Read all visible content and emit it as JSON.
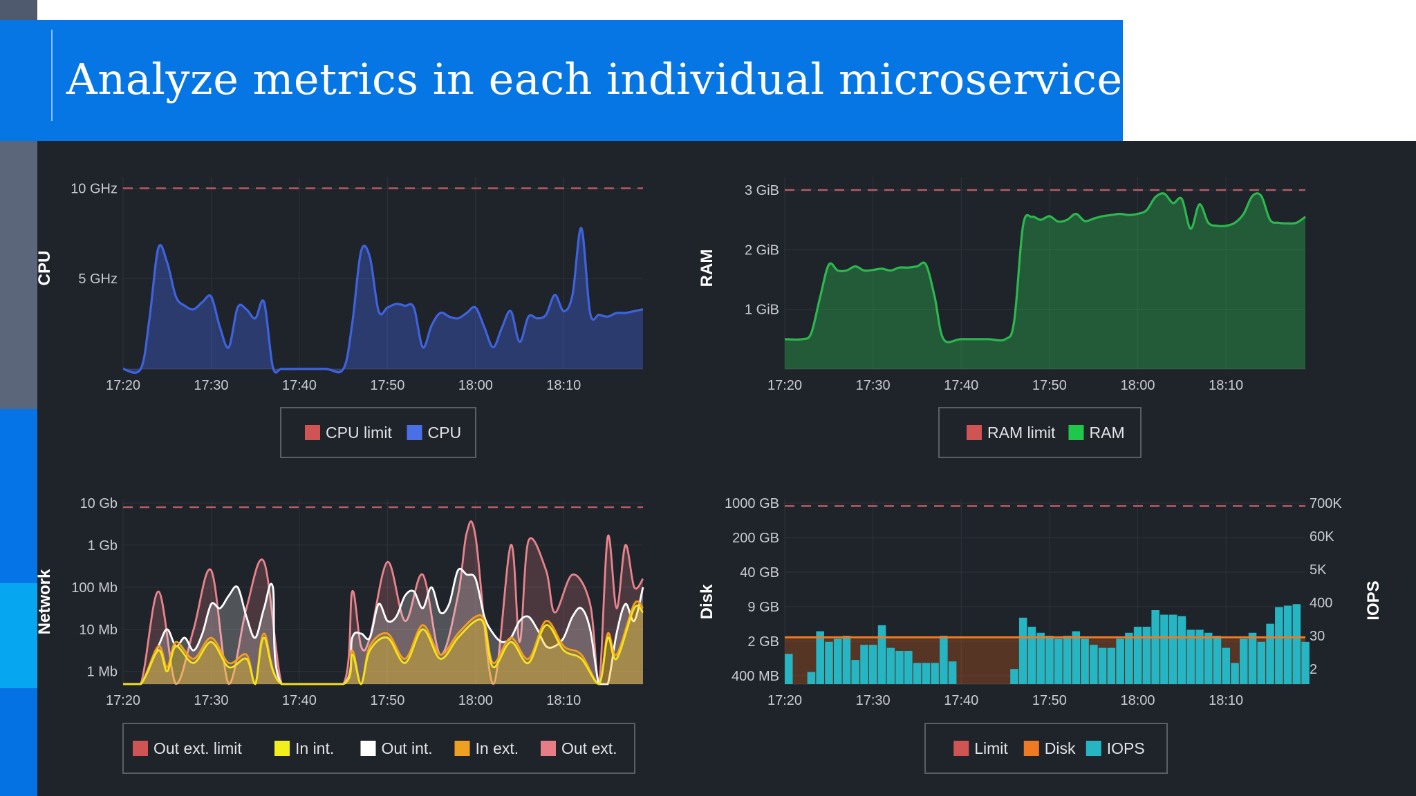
{
  "slide": {
    "title": "Analyze metrics in each individual microservice"
  },
  "colors": {
    "title_bar": "#0576e4",
    "dashboard_bg": "#1f232a",
    "limit_line": "#b85b62"
  },
  "chart_data": [
    {
      "id": "cpu",
      "type": "area",
      "ylabel": "CPU",
      "y_ticks": [
        "10 GHz",
        "5 GHz"
      ],
      "y_tick_values": [
        10,
        5
      ],
      "ylim": [
        0,
        10.4
      ],
      "x_ticks": [
        "17:20",
        "17:30",
        "17:40",
        "17:50",
        "18:00",
        "18:10"
      ],
      "xlim": [
        "17:20",
        "18:19"
      ],
      "limit": 10,
      "series": [
        {
          "name": "CPU",
          "color": "#3f63dd",
          "x": [
            "17:20",
            "17:22",
            "17:23",
            "17:24",
            "17:25",
            "17:26",
            "17:27",
            "17:28",
            "17:29",
            "17:30",
            "17:31",
            "17:32",
            "17:33",
            "17:34",
            "17:35",
            "17:36",
            "17:37",
            "17:38",
            "17:40",
            "17:43",
            "17:45",
            "17:46",
            "17:47",
            "17:48",
            "17:49",
            "17:50",
            "17:51",
            "17:52",
            "17:53",
            "17:54",
            "17:55",
            "17:56",
            "17:57",
            "17:58",
            "17:59",
            "18:00",
            "18:01",
            "18:02",
            "18:03",
            "18:04",
            "18:05",
            "18:06",
            "18:07",
            "18:08",
            "18:09",
            "18:10",
            "18:11",
            "18:12",
            "18:13",
            "18:14",
            "18:15",
            "18:16",
            "18:17",
            "18:18",
            "18:19"
          ],
          "values": [
            0,
            0,
            2.8,
            6.7,
            5.9,
            4.0,
            3.5,
            3.3,
            3.7,
            4.0,
            2.3,
            1.2,
            3.4,
            3.3,
            2.8,
            3.7,
            0.1,
            0,
            0,
            0,
            0,
            2.5,
            6.5,
            6.2,
            3.2,
            3.4,
            3.6,
            3.5,
            3.4,
            1.2,
            2.4,
            3.1,
            2.9,
            2.8,
            3.1,
            3.4,
            2.3,
            1.2,
            2.3,
            3.2,
            1.5,
            2.9,
            2.8,
            3.0,
            4.1,
            3.2,
            4.1,
            7.8,
            3.1,
            3.0,
            2.9,
            3.1,
            3.1,
            3.2,
            3.3
          ]
        }
      ],
      "legend": [
        "CPU limit",
        "CPU"
      ],
      "legend_colors": [
        "#d05454",
        "#4a70e8"
      ]
    },
    {
      "id": "ram",
      "type": "area",
      "ylabel": "RAM",
      "y_ticks": [
        "3 GiB",
        "2 GiB",
        "1 GiB"
      ],
      "y_tick_values": [
        3,
        2,
        1
      ],
      "ylim": [
        0,
        3.15
      ],
      "x_ticks": [
        "17:20",
        "17:30",
        "17:40",
        "17:50",
        "18:00",
        "18:10"
      ],
      "xlim": [
        "17:20",
        "18:19"
      ],
      "limit": 3,
      "series": [
        {
          "name": "RAM",
          "color": "#2bb84e",
          "x": [
            "17:20",
            "17:22",
            "17:23",
            "17:24",
            "17:25",
            "17:26",
            "17:27",
            "17:28",
            "17:29",
            "17:30",
            "17:31",
            "17:32",
            "17:33",
            "17:34",
            "17:35",
            "17:36",
            "17:37",
            "17:38",
            "17:40",
            "17:43",
            "17:45",
            "17:46",
            "17:47",
            "17:48",
            "17:49",
            "17:50",
            "17:51",
            "17:52",
            "17:53",
            "17:54",
            "17:55",
            "17:56",
            "17:57",
            "17:58",
            "17:59",
            "18:00",
            "18:01",
            "18:02",
            "18:03",
            "18:04",
            "18:05",
            "18:06",
            "18:07",
            "18:08",
            "18:09",
            "18:10",
            "18:11",
            "18:12",
            "18:13",
            "18:14",
            "18:15",
            "18:16",
            "18:17",
            "18:18",
            "18:19"
          ],
          "values": [
            0.5,
            0.5,
            0.6,
            1.2,
            1.75,
            1.65,
            1.65,
            1.72,
            1.65,
            1.66,
            1.68,
            1.65,
            1.7,
            1.7,
            1.72,
            1.75,
            1.2,
            0.5,
            0.5,
            0.5,
            0.5,
            0.8,
            2.4,
            2.55,
            2.5,
            2.56,
            2.47,
            2.5,
            2.6,
            2.48,
            2.52,
            2.56,
            2.58,
            2.6,
            2.58,
            2.6,
            2.66,
            2.88,
            2.94,
            2.78,
            2.85,
            2.35,
            2.76,
            2.45,
            2.4,
            2.4,
            2.45,
            2.6,
            2.9,
            2.9,
            2.5,
            2.45,
            2.44,
            2.45,
            2.55
          ]
        }
      ],
      "legend": [
        "RAM limit",
        "RAM"
      ],
      "legend_colors": [
        "#d05454",
        "#1ec94a"
      ]
    },
    {
      "id": "network",
      "type": "area",
      "ylabel": "Network",
      "y_scale": "log",
      "y_ticks": [
        "10 Gb",
        "1 Gb",
        "100 Mb",
        "10 Mb",
        "1 Mb"
      ],
      "y_tick_values": [
        10000,
        1000,
        100,
        10,
        1
      ],
      "ylim_log10": [
        -0.3,
        4
      ],
      "x_ticks": [
        "17:20",
        "17:30",
        "17:40",
        "17:50",
        "18:00",
        "18:10"
      ],
      "xlim": [
        "17:20",
        "18:19"
      ],
      "limit": 10000,
      "series": [
        {
          "name": "Out ext.",
          "color": "#e8848d",
          "x": [
            "17:20",
            "17:22",
            "17:24",
            "17:26",
            "17:28",
            "17:30",
            "17:32",
            "17:34",
            "17:36",
            "17:38",
            "17:40",
            "17:45",
            "17:46",
            "17:47",
            "17:48",
            "17:50",
            "17:52",
            "17:54",
            "17:56",
            "17:58",
            "17:59",
            "18:00",
            "18:02",
            "18:04",
            "18:05",
            "18:06",
            "18:08",
            "18:09",
            "18:11",
            "18:13",
            "18:14",
            "18:15",
            "18:16",
            "18:17",
            "18:18",
            "18:19"
          ],
          "values_log10": [
            -0.3,
            -0.3,
            1.9,
            -0.3,
            1.0,
            2.4,
            -0.3,
            1.5,
            2.6,
            -0.3,
            -0.3,
            -0.3,
            1.9,
            0.6,
            0.8,
            2.6,
            1.2,
            2.3,
            0.4,
            1.8,
            3.3,
            3.2,
            -0.3,
            3.0,
            0.7,
            3.1,
            2.4,
            1.4,
            2.3,
            1.6,
            -0.3,
            3.2,
            1.5,
            3.0,
            2.0,
            2.2
          ]
        },
        {
          "name": "Out int.",
          "color": "#ffffff",
          "x": [
            "17:20",
            "17:22",
            "17:24",
            "17:25",
            "17:26",
            "17:27",
            "17:28",
            "17:29",
            "17:30",
            "17:31",
            "17:32",
            "17:33",
            "17:34",
            "17:35",
            "17:36",
            "17:37",
            "17:38",
            "17:45",
            "17:46",
            "17:47",
            "17:48",
            "17:49",
            "17:50",
            "17:51",
            "17:52",
            "17:53",
            "17:54",
            "17:55",
            "17:56",
            "17:57",
            "17:58",
            "17:59",
            "18:00",
            "18:01",
            "18:02",
            "18:03",
            "18:04",
            "18:05",
            "18:06",
            "18:07",
            "18:08",
            "18:09",
            "18:10",
            "18:11",
            "18:12",
            "18:13",
            "18:14",
            "18:15",
            "18:16",
            "18:17",
            "18:18",
            "18:19"
          ],
          "values_log10": [
            -0.3,
            -0.3,
            0.6,
            1.0,
            0.6,
            0.8,
            0.5,
            0.9,
            1.6,
            1.5,
            1.8,
            2.0,
            1.3,
            0.8,
            1.5,
            2.0,
            -0.3,
            -0.3,
            0.8,
            0.9,
            0.8,
            1.6,
            1.2,
            1.3,
            1.8,
            1.9,
            1.5,
            2.0,
            1.4,
            1.6,
            2.4,
            2.3,
            2.2,
            1.3,
            0.9,
            0.7,
            0.8,
            1.2,
            1.3,
            1.0,
            0.6,
            0.6,
            0.8,
            1.3,
            1.5,
            1.0,
            -0.3,
            -0.3,
            0.9,
            1.6,
            1.2,
            2.0
          ]
        },
        {
          "name": "In ext.",
          "color": "#f0a020",
          "x": [
            "17:20",
            "17:22",
            "17:24",
            "17:25",
            "17:26",
            "17:28",
            "17:30",
            "17:32",
            "17:34",
            "17:35",
            "17:36",
            "17:38",
            "17:45",
            "17:46",
            "17:47",
            "17:48",
            "17:50",
            "17:52",
            "17:54",
            "17:56",
            "17:58",
            "18:00",
            "18:01",
            "18:02",
            "18:04",
            "18:06",
            "18:08",
            "18:10",
            "18:12",
            "18:14",
            "18:15",
            "18:16",
            "18:18",
            "18:19"
          ],
          "values_log10": [
            -0.3,
            -0.3,
            0.6,
            0.1,
            0.7,
            0.3,
            0.8,
            0.2,
            0.4,
            -0.3,
            0.9,
            -0.3,
            -0.3,
            0.5,
            -0.3,
            0.6,
            0.9,
            0.3,
            1.1,
            0.4,
            0.9,
            1.3,
            1.2,
            0.2,
            0.8,
            0.3,
            1.2,
            0.6,
            0.4,
            -0.3,
            0.9,
            0.4,
            1.6,
            1.5
          ]
        },
        {
          "name": "In int.",
          "color": "#f2e51b",
          "x": [
            "17:20",
            "17:22",
            "17:24",
            "17:25",
            "17:26",
            "17:28",
            "17:30",
            "17:32",
            "17:34",
            "17:35",
            "17:36",
            "17:38",
            "17:45",
            "17:46",
            "17:47",
            "17:48",
            "17:50",
            "17:52",
            "17:54",
            "17:56",
            "17:58",
            "18:00",
            "18:01",
            "18:02",
            "18:04",
            "18:06",
            "18:08",
            "18:10",
            "18:12",
            "18:14",
            "18:15",
            "18:16",
            "18:18",
            "18:19"
          ],
          "values_log10": [
            -0.3,
            -0.3,
            0.5,
            0.0,
            0.6,
            0.2,
            0.7,
            0.1,
            0.3,
            -0.3,
            0.8,
            -0.3,
            -0.3,
            0.4,
            -0.3,
            0.5,
            0.8,
            0.2,
            1.0,
            0.3,
            0.8,
            1.2,
            1.1,
            0.1,
            0.7,
            0.2,
            1.1,
            0.5,
            0.3,
            -0.3,
            0.8,
            0.3,
            1.5,
            1.4
          ]
        }
      ],
      "legend": [
        "Out ext. limit",
        "In int.",
        "Out int.",
        "In ext.",
        "Out ext."
      ],
      "legend_colors": [
        "#d05454",
        "#f2ef1b",
        "#ffffff",
        "#f0a020",
        "#e87d87"
      ]
    },
    {
      "id": "disk",
      "type": "bar",
      "ylabel": "Disk",
      "y2label": "IOPS",
      "y_ticks": [
        "1000 GB",
        "200 GB",
        "40 GB",
        "9 GB",
        "2 GB",
        "400 MB"
      ],
      "y2_ticks": [
        "700K",
        "60K",
        "5K",
        "400",
        "30",
        "2"
      ],
      "x_ticks": [
        "17:20",
        "17:30",
        "17:40",
        "17:50",
        "18:00",
        "18:10"
      ],
      "xlim": [
        "17:20",
        "18:19"
      ],
      "limit_level": 5.9,
      "disk_level": 1.55,
      "bar_scale_max": 6,
      "series": [
        {
          "name": "IOPS",
          "color": "#26b5c3",
          "x": [
            "17:20",
            "17:21",
            "17:22",
            "17:23",
            "17:24",
            "17:25",
            "17:26",
            "17:27",
            "17:28",
            "17:29",
            "17:30",
            "17:31",
            "17:32",
            "17:33",
            "17:34",
            "17:35",
            "17:36",
            "17:37",
            "17:38",
            "17:39",
            "17:40",
            "17:41",
            "17:42",
            "17:43",
            "17:44",
            "17:45",
            "17:46",
            "17:47",
            "17:48",
            "17:49",
            "17:50",
            "17:51",
            "17:52",
            "17:53",
            "17:54",
            "17:55",
            "17:56",
            "17:57",
            "17:58",
            "17:59",
            "18:00",
            "18:01",
            "18:02",
            "18:03",
            "18:04",
            "18:05",
            "18:06",
            "18:07",
            "18:08",
            "18:09",
            "18:10",
            "18:11",
            "18:12",
            "18:13",
            "18:14",
            "18:15",
            "18:16",
            "18:17",
            "18:18",
            "18:19"
          ],
          "values": [
            1.0,
            0,
            0,
            0.4,
            1.75,
            1.4,
            1.5,
            1.6,
            0.8,
            1.3,
            1.3,
            1.95,
            1.2,
            1.1,
            1.1,
            0.7,
            0.7,
            0.7,
            1.6,
            0.75,
            0,
            0,
            0,
            0,
            0,
            0,
            0.5,
            2.2,
            1.9,
            1.7,
            1.6,
            1.5,
            1.6,
            1.75,
            1.5,
            1.3,
            1.2,
            1.2,
            1.5,
            1.7,
            1.9,
            1.9,
            2.45,
            2.3,
            2.3,
            2.25,
            1.8,
            1.8,
            1.7,
            1.6,
            1.2,
            0.7,
            1.5,
            1.7,
            1.4,
            2.0,
            2.55,
            2.6,
            2.65,
            1.4
          ]
        }
      ],
      "legend": [
        "Limit",
        "Disk",
        "IOPS"
      ],
      "legend_colors": [
        "#d05454",
        "#f07a22",
        "#26b5c3"
      ]
    }
  ]
}
